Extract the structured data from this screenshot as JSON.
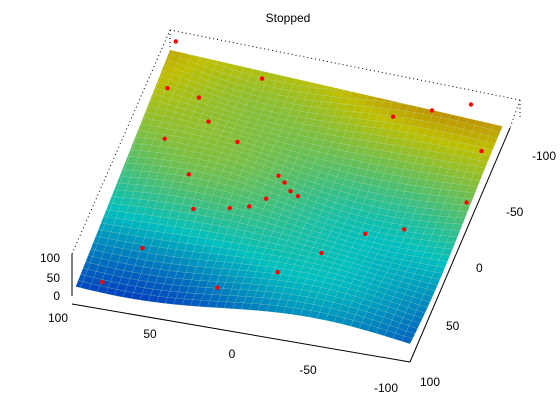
{
  "figure": {
    "title": "Stopped"
  },
  "chart_data": {
    "type": "surface",
    "title": "Stopped",
    "surface": {
      "function": "periodic wave surface",
      "x_range": [
        -100,
        100
      ],
      "y_range": [
        -100,
        100
      ],
      "z_range": [
        0,
        100
      ],
      "colormap": "jet-like (blue low, red high)",
      "edge_color": "dense mesh points"
    },
    "axes": {
      "x": {
        "lim": [
          -100,
          100
        ],
        "ticks": [
          100,
          50,
          0,
          -50,
          -100
        ],
        "tick_labels": [
          "100",
          "50",
          "0",
          "-50",
          "-100"
        ]
      },
      "y": {
        "lim": [
          -100,
          100
        ],
        "ticks": [
          -100,
          -50,
          0,
          50,
          100
        ],
        "tick_labels": [
          "-100",
          "-50",
          "0",
          "50",
          "100"
        ]
      },
      "z": {
        "lim": [
          0,
          100
        ],
        "ticks": [
          0,
          50,
          100
        ],
        "tick_labels": [
          "0",
          "50",
          "100"
        ]
      }
    },
    "scatter_overlay": {
      "color": "#ff0000",
      "marker": "dot",
      "points": [
        {
          "x": 96,
          "y": -98,
          "z": 30
        },
        {
          "x": 90,
          "y": -60,
          "z": 35
        },
        {
          "x": 70,
          "y": -55,
          "z": 45
        },
        {
          "x": 60,
          "y": -40,
          "z": 40
        },
        {
          "x": 40,
          "y": -30,
          "z": 38
        },
        {
          "x": 10,
          "y": -10,
          "z": 40
        },
        {
          "x": 5,
          "y": -5,
          "z": 42
        },
        {
          "x": 0,
          "y": 0,
          "z": 40
        },
        {
          "x": -5,
          "y": 2,
          "z": 38
        },
        {
          "x": 12,
          "y": 8,
          "z": 35
        },
        {
          "x": 20,
          "y": 15,
          "z": 30
        },
        {
          "x": 30,
          "y": 20,
          "z": 32
        },
        {
          "x": 50,
          "y": 25,
          "z": 28
        },
        {
          "x": 70,
          "y": 60,
          "z": 20
        },
        {
          "x": 85,
          "y": 90,
          "z": 15
        },
        {
          "x": -40,
          "y": -70,
          "z": 55
        },
        {
          "x": -60,
          "y": -80,
          "z": 60
        },
        {
          "x": -80,
          "y": -90,
          "z": 65
        },
        {
          "x": -95,
          "y": -60,
          "z": 50
        },
        {
          "x": -98,
          "y": -20,
          "z": 40
        },
        {
          "x": -70,
          "y": 10,
          "z": 35
        },
        {
          "x": -30,
          "y": 40,
          "z": 30
        },
        {
          "x": -10,
          "y": 60,
          "z": 25
        },
        {
          "x": 20,
          "y": 80,
          "z": 22
        },
        {
          "x": 40,
          "y": -80,
          "z": 45
        },
        {
          "x": 60,
          "y": 0,
          "z": 30
        },
        {
          "x": -50,
          "y": 20,
          "z": 36
        },
        {
          "x": 80,
          "y": -20,
          "z": 40
        }
      ]
    },
    "grid": false,
    "box": "dotted"
  }
}
